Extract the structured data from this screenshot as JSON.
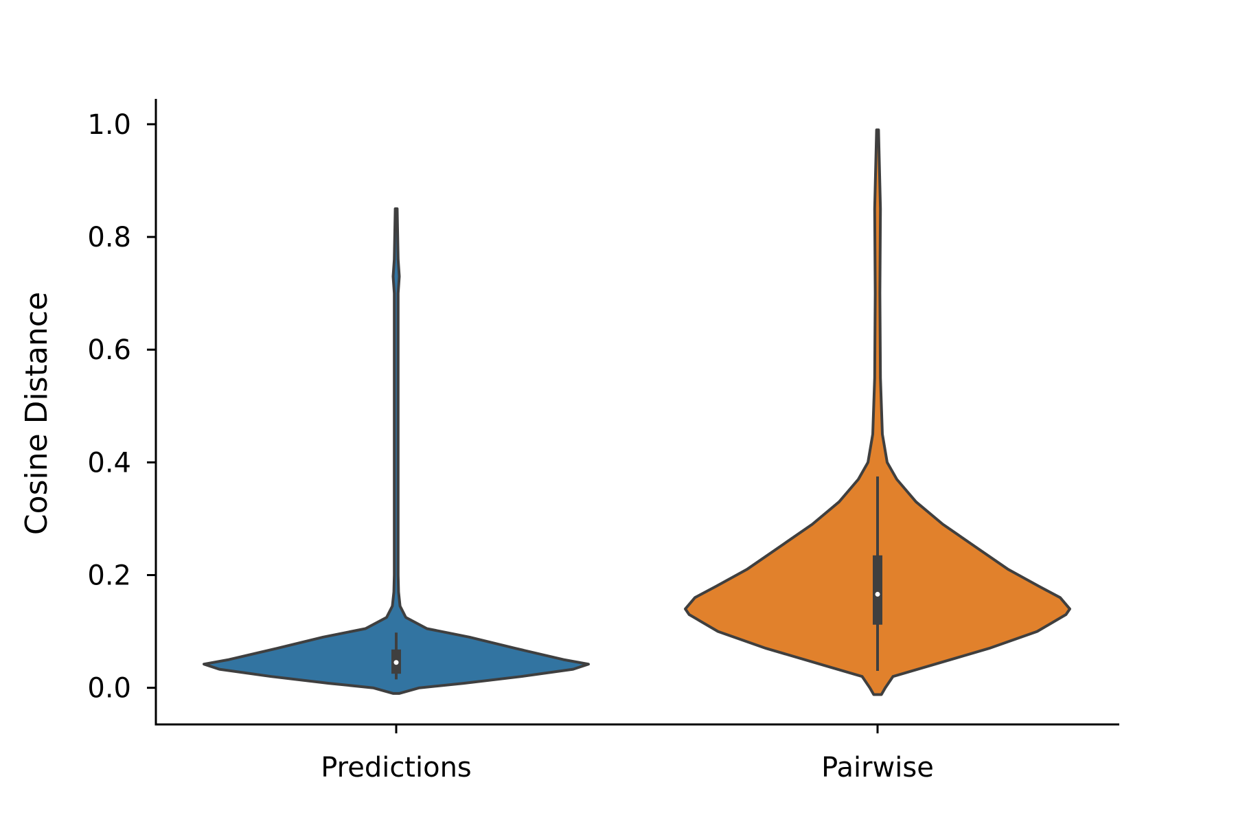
{
  "chart_data": {
    "type": "violin",
    "title": "",
    "xlabel": "",
    "ylabel": "Cosine Distance",
    "categories": [
      "Predictions",
      "Pairwise"
    ],
    "ylim": [
      -0.065,
      1.045
    ],
    "yticks": [
      0.0,
      0.2,
      0.4,
      0.6,
      0.8,
      1.0
    ],
    "ytick_labels": [
      "0.0",
      "0.2",
      "0.4",
      "0.6",
      "0.8",
      "1.0"
    ],
    "grid": false,
    "legend": "none",
    "series": [
      {
        "category": "Predictions",
        "color": "#3274a1",
        "min": -0.01,
        "max": 0.85,
        "q1": 0.025,
        "median": 0.045,
        "q3": 0.068,
        "whisker_low": 0.015,
        "whisker_high": 0.098,
        "profile": [
          [
            -0.01,
            0.015
          ],
          [
            0.0,
            0.12
          ],
          [
            0.008,
            0.35
          ],
          [
            0.02,
            0.65
          ],
          [
            0.033,
            0.92
          ],
          [
            0.042,
            1.0
          ],
          [
            0.05,
            0.87
          ],
          [
            0.07,
            0.62
          ],
          [
            0.09,
            0.38
          ],
          [
            0.105,
            0.16
          ],
          [
            0.125,
            0.05
          ],
          [
            0.145,
            0.02
          ],
          [
            0.17,
            0.012
          ],
          [
            0.2,
            0.01
          ],
          [
            0.3,
            0.01
          ],
          [
            0.5,
            0.01
          ],
          [
            0.7,
            0.01
          ],
          [
            0.73,
            0.016
          ],
          [
            0.76,
            0.01
          ],
          [
            0.85,
            0.005
          ]
        ]
      },
      {
        "category": "Pairwise",
        "color": "#e1812c",
        "min": -0.012,
        "max": 0.99,
        "q1": 0.112,
        "median": 0.166,
        "q3": 0.235,
        "whisker_low": 0.03,
        "whisker_high": 0.375,
        "profile": [
          [
            -0.012,
            0.02
          ],
          [
            0.0,
            0.04
          ],
          [
            0.02,
            0.08
          ],
          [
            0.04,
            0.28
          ],
          [
            0.07,
            0.58
          ],
          [
            0.1,
            0.83
          ],
          [
            0.13,
            0.98
          ],
          [
            0.14,
            1.0
          ],
          [
            0.16,
            0.95
          ],
          [
            0.18,
            0.84
          ],
          [
            0.21,
            0.68
          ],
          [
            0.25,
            0.51
          ],
          [
            0.29,
            0.34
          ],
          [
            0.33,
            0.2
          ],
          [
            0.37,
            0.1
          ],
          [
            0.4,
            0.05
          ],
          [
            0.45,
            0.025
          ],
          [
            0.55,
            0.015
          ],
          [
            0.7,
            0.012
          ],
          [
            0.85,
            0.015
          ],
          [
            0.99,
            0.005
          ]
        ]
      }
    ]
  }
}
